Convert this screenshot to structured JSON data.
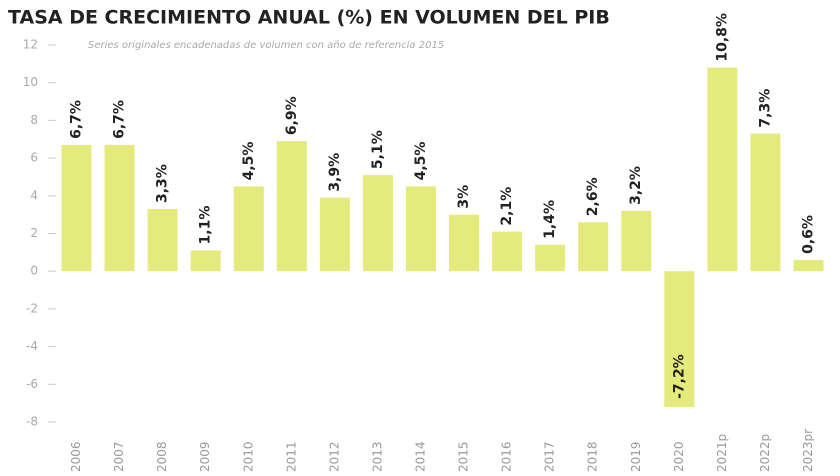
{
  "chart_data": {
    "type": "bar",
    "title": "TASA DE CRECIMIENTO ANUAL (%) EN VOLUMEN DEL PIB",
    "subtitle": "Series originales encadenadas de volumen con año de referencia 2015",
    "categories": [
      "2006",
      "2007",
      "2008",
      "2009",
      "2010",
      "2011",
      "2012",
      "2013",
      "2014",
      "2015",
      "2016",
      "2017",
      "2018",
      "2019",
      "2020",
      "2021p",
      "2022p",
      "2023pr"
    ],
    "values": [
      6.7,
      6.7,
      3.3,
      1.1,
      4.5,
      6.9,
      3.9,
      5.1,
      4.5,
      3,
      2.1,
      1.4,
      2.6,
      3.2,
      -7.2,
      10.8,
      7.3,
      0.6
    ],
    "value_labels": [
      "6,7%",
      "6,7%",
      "3,3%",
      "1,1%",
      "4,5%",
      "6,9%",
      "3,9%",
      "5,1%",
      "4,5%",
      "3%",
      "2,1%",
      "1,4%",
      "2,6%",
      "3,2%",
      "-7,2%",
      "10,8%",
      "7,3%",
      "0,6%"
    ],
    "color": "#e4ea7c",
    "ylim": [
      -8,
      12
    ],
    "yticks": [
      -8,
      -6,
      -4,
      -2,
      0,
      2,
      4,
      6,
      8,
      10,
      12
    ],
    "grid": false
  }
}
